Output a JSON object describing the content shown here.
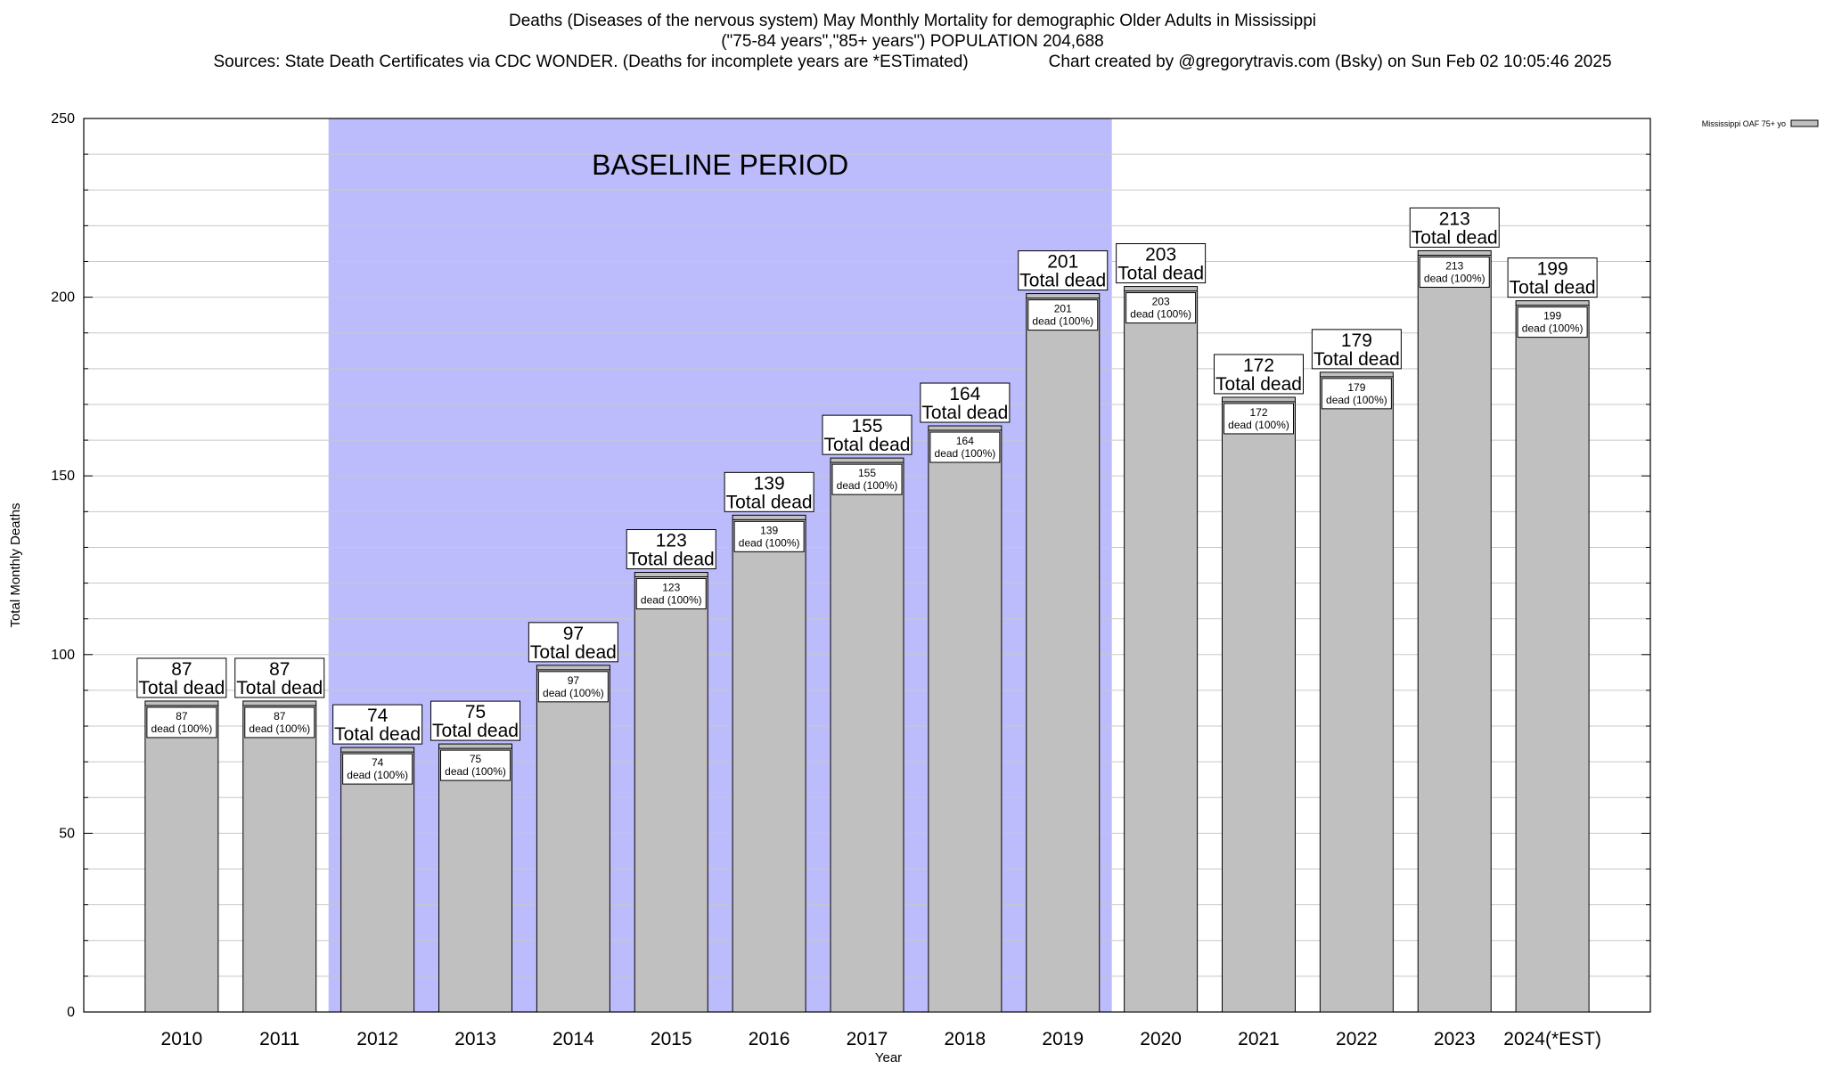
{
  "title": {
    "line1": "Deaths (Diseases of the nervous system) May Monthly Mortality for demographic Older Adults in Mississippi",
    "line2": "(\"75-84 years\",\"85+ years\") POPULATION 204,688",
    "line3_source": "Sources: State Death Certificates via CDC WONDER. (Deaths for incomplete years are *ESTimated)",
    "line3_credit": "Chart created by @gregorytravis.com (Bsky) on Sun Feb 02 10:05:46 2025"
  },
  "colors": {
    "bar_fill": "#c0c0c0",
    "baseline_band": "#bcbcfc",
    "grid": "#c8c8c8"
  },
  "chart_data": {
    "type": "bar",
    "title": "Deaths (Diseases of the nervous system) May Monthly Mortality for demographic Older Adults in Mississippi",
    "xlabel": "Year",
    "ylabel": "Total Monthly Deaths",
    "ylim": [
      0,
      250
    ],
    "yticks": [
      0,
      50,
      100,
      150,
      200,
      250
    ],
    "grid": true,
    "legend_position": "top-right, outside plot",
    "categories": [
      "2010",
      "2011",
      "2012",
      "2013",
      "2014",
      "2015",
      "2016",
      "2017",
      "2018",
      "2019",
      "2020",
      "2021",
      "2022",
      "2023",
      "2024(*EST)"
    ],
    "series": [
      {
        "name": "Mississippi OAF 75+ yo",
        "values": [
          87,
          87,
          74,
          75,
          97,
          123,
          139,
          155,
          164,
          201,
          203,
          172,
          179,
          213,
          199
        ]
      }
    ],
    "bar_label_text": "Total dead",
    "segment_label_suffix": "dead (100%)",
    "baseline_period": {
      "label": "BASELINE PERIOD",
      "start": "2012",
      "end": "2019"
    }
  }
}
